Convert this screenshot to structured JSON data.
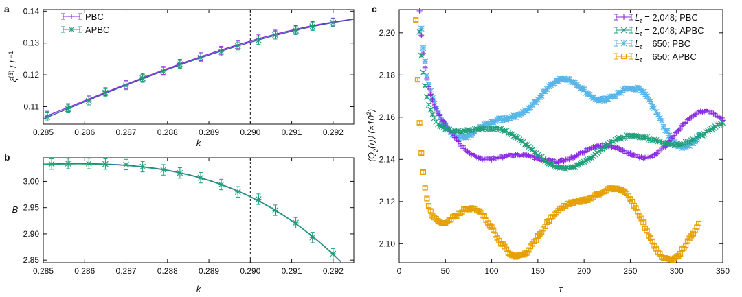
{
  "panels": {
    "a": "a",
    "b": "b",
    "c": "c"
  },
  "colors": {
    "pbc": "#8a2be2",
    "apbc": "#1f9e7a",
    "pbc650": "#56b4e9",
    "apbc650": "#e69f00",
    "fit": "#3b5aa8",
    "axis": "#111111"
  },
  "chart_data": [
    {
      "id": "a",
      "type": "line",
      "xlabel": "k",
      "ylabel": "ξ(3) / L⁻¹",
      "xlim": [
        0.285,
        0.2925
      ],
      "ylim": [
        0.1045,
        0.1405
      ],
      "xticks": [
        "0.285",
        "0.286",
        "0.287",
        "0.288",
        "0.289",
        "0.290",
        "0.291",
        "0.292"
      ],
      "yticks": [
        "0.11",
        "0.12",
        "0.13",
        "0.14"
      ],
      "critical_k": 0.29,
      "legend_position": "top-left",
      "x": [
        0.2851,
        0.2856,
        0.2861,
        0.2865,
        0.287,
        0.2874,
        0.2879,
        0.2883,
        0.2888,
        0.2893,
        0.2897,
        0.2902,
        0.2906,
        0.2911,
        0.2915,
        0.292
      ],
      "series": [
        {
          "name": "PBC",
          "values": [
            0.1073,
            0.1097,
            0.1121,
            0.1147,
            0.1169,
            0.1192,
            0.1214,
            0.1236,
            0.1257,
            0.1277,
            0.1295,
            0.1313,
            0.1328,
            0.1342,
            0.1355,
            0.1366
          ],
          "err": 0.0025
        },
        {
          "name": "APBC",
          "values": [
            0.1068,
            0.1093,
            0.1118,
            0.1144,
            0.1166,
            0.1189,
            0.1211,
            0.1233,
            0.1254,
            0.1273,
            0.1291,
            0.1309,
            0.1325,
            0.1339,
            0.1352,
            0.1364
          ],
          "err": 0.0025
        }
      ]
    },
    {
      "id": "b",
      "type": "line",
      "xlabel": "k",
      "ylabel": "B",
      "xlim": [
        0.285,
        0.2925
      ],
      "ylim": [
        2.845,
        3.045
      ],
      "xticks": [
        "0.285",
        "0.286",
        "0.287",
        "0.288",
        "0.289",
        "0.290",
        "0.291",
        "0.292"
      ],
      "yticks": [
        "2.85",
        "2.90",
        "2.95",
        "3.00"
      ],
      "critical_k": 0.29,
      "x": [
        0.2852,
        0.2856,
        0.2861,
        0.2865,
        0.287,
        0.2874,
        0.2879,
        0.2883,
        0.2888,
        0.2893,
        0.2897,
        0.2902,
        0.2906,
        0.2911,
        0.2915,
        0.292
      ],
      "series": [
        {
          "name": "APBC",
          "values": [
            3.033,
            3.034,
            3.034,
            3.033,
            3.032,
            3.028,
            3.022,
            3.016,
            3.007,
            2.994,
            2.98,
            2.966,
            2.945,
            2.921,
            2.893,
            2.862
          ],
          "err": 0.01
        }
      ]
    },
    {
      "id": "c",
      "type": "line",
      "xlabel": "τ",
      "ylabel": "⟨Q2(τ)⟩ (×10²)",
      "xlim": [
        0,
        350
      ],
      "ylim": [
        2.091,
        2.211
      ],
      "xticks": [
        "0",
        "50",
        "100",
        "150",
        "200",
        "250",
        "300",
        "350"
      ],
      "yticks": [
        "2.10",
        "2.12",
        "2.14",
        "2.16",
        "2.18",
        "2.20"
      ],
      "legend_position": "top-right",
      "series": [
        {
          "name": "Lτ = 2,048; PBC",
          "label_main": "L",
          "label_sub": "τ",
          "label_rest": " = 2,048; PBC",
          "start": 20,
          "step": 2,
          "end": 350,
          "initial": 2.209,
          "plateau": 2.1465,
          "decay": 7,
          "wobble": [
            [
              2.5,
              4e-05,
              0.0
            ],
            [
              0.8,
              8e-05,
              1.3
            ],
            [
              1.6,
              5e-05,
              0.5
            ]
          ],
          "noise": 0.0008,
          "err": 0.0012
        },
        {
          "name": "Lτ = 2,048; APBC",
          "label_main": "L",
          "label_sub": "τ",
          "label_rest": " = 2,048; APBC",
          "start": 20,
          "step": 2,
          "end": 350,
          "initial": 2.206,
          "plateau": 2.1482,
          "decay": 7,
          "wobble": [
            [
              2.0,
              5e-05,
              2.0
            ],
            [
              0.9,
              9e-05,
              0.2
            ],
            [
              1.2,
              3e-05,
              1.1
            ]
          ],
          "noise": 0.0007,
          "err": 0.0012
        },
        {
          "name": "Lτ = 650; PBC",
          "label_main": "L",
          "label_sub": "τ",
          "label_rest": " = 650; PBC",
          "start": 22,
          "step": 2,
          "end": 325,
          "initial": 2.206,
          "plateau": 2.1655,
          "decay": 6,
          "wobble": [
            [
              3.0,
              5e-05,
              0.7
            ],
            [
              1.1,
              0.00011,
              2.4
            ],
            [
              2.2,
              4e-05,
              0.1
            ]
          ],
          "noise": 0.0012,
          "err": 0.002
        },
        {
          "name": "Lτ = 650; APBC",
          "label_main": "L",
          "label_sub": "τ",
          "label_rest": " = 650; APBC",
          "start": 18,
          "step": 2,
          "end": 325,
          "initial": 2.197,
          "plateau": 2.1115,
          "decay": 5,
          "wobble": [
            [
              3.0,
              6e-05,
              1.7
            ],
            [
              1.3,
              0.00012,
              0.9
            ],
            [
              2.1,
              5e-05,
              2.8
            ]
          ],
          "noise": 0.001,
          "err": 0.0015
        }
      ]
    }
  ]
}
